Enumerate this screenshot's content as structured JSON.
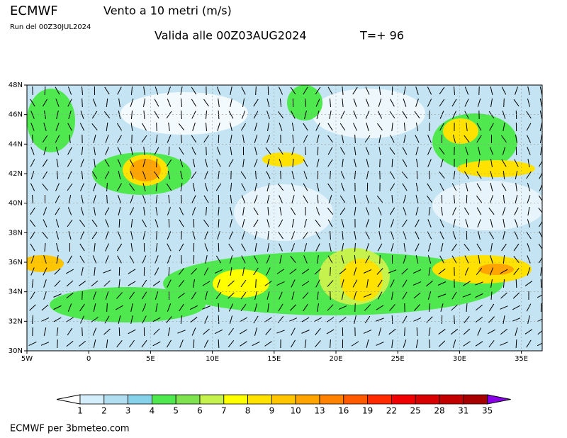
{
  "header": {
    "model": "ECMWF",
    "title": "Vento a 10 metri (m/s)",
    "run": "Run del 00Z30JUL2024",
    "valid": "Valida alle 00Z03AUG2024",
    "step": "T=+ 96"
  },
  "map": {
    "lat_labels": [
      "48N",
      "46N",
      "44N",
      "42N",
      "40N",
      "38N",
      "36N",
      "34N",
      "32N",
      "30N"
    ],
    "lon_labels": [
      "5W",
      "0",
      "5E",
      "10E",
      "15E",
      "20E",
      "25E",
      "30E",
      "35E"
    ]
  },
  "colorbar": {
    "labels": [
      "1",
      "2",
      "3",
      "4",
      "5",
      "6",
      "7",
      "8",
      "9",
      "10",
      "13",
      "16",
      "19",
      "22",
      "25",
      "28",
      "31",
      "35"
    ],
    "colors": [
      "#d4eefb",
      "#b2def2",
      "#86d2ea",
      "#4fe84f",
      "#7fe24f",
      "#c6f24e",
      "#ffff00",
      "#ffe200",
      "#ffc600",
      "#ffa400",
      "#ff8200",
      "#ff5a00",
      "#ff2a00",
      "#f00000",
      "#d80000",
      "#c20000",
      "#a80000"
    ],
    "under_color": "#ffffff",
    "over_color": "#8a00e6"
  },
  "footer": "ECMWF per 3bmeteo.com"
}
